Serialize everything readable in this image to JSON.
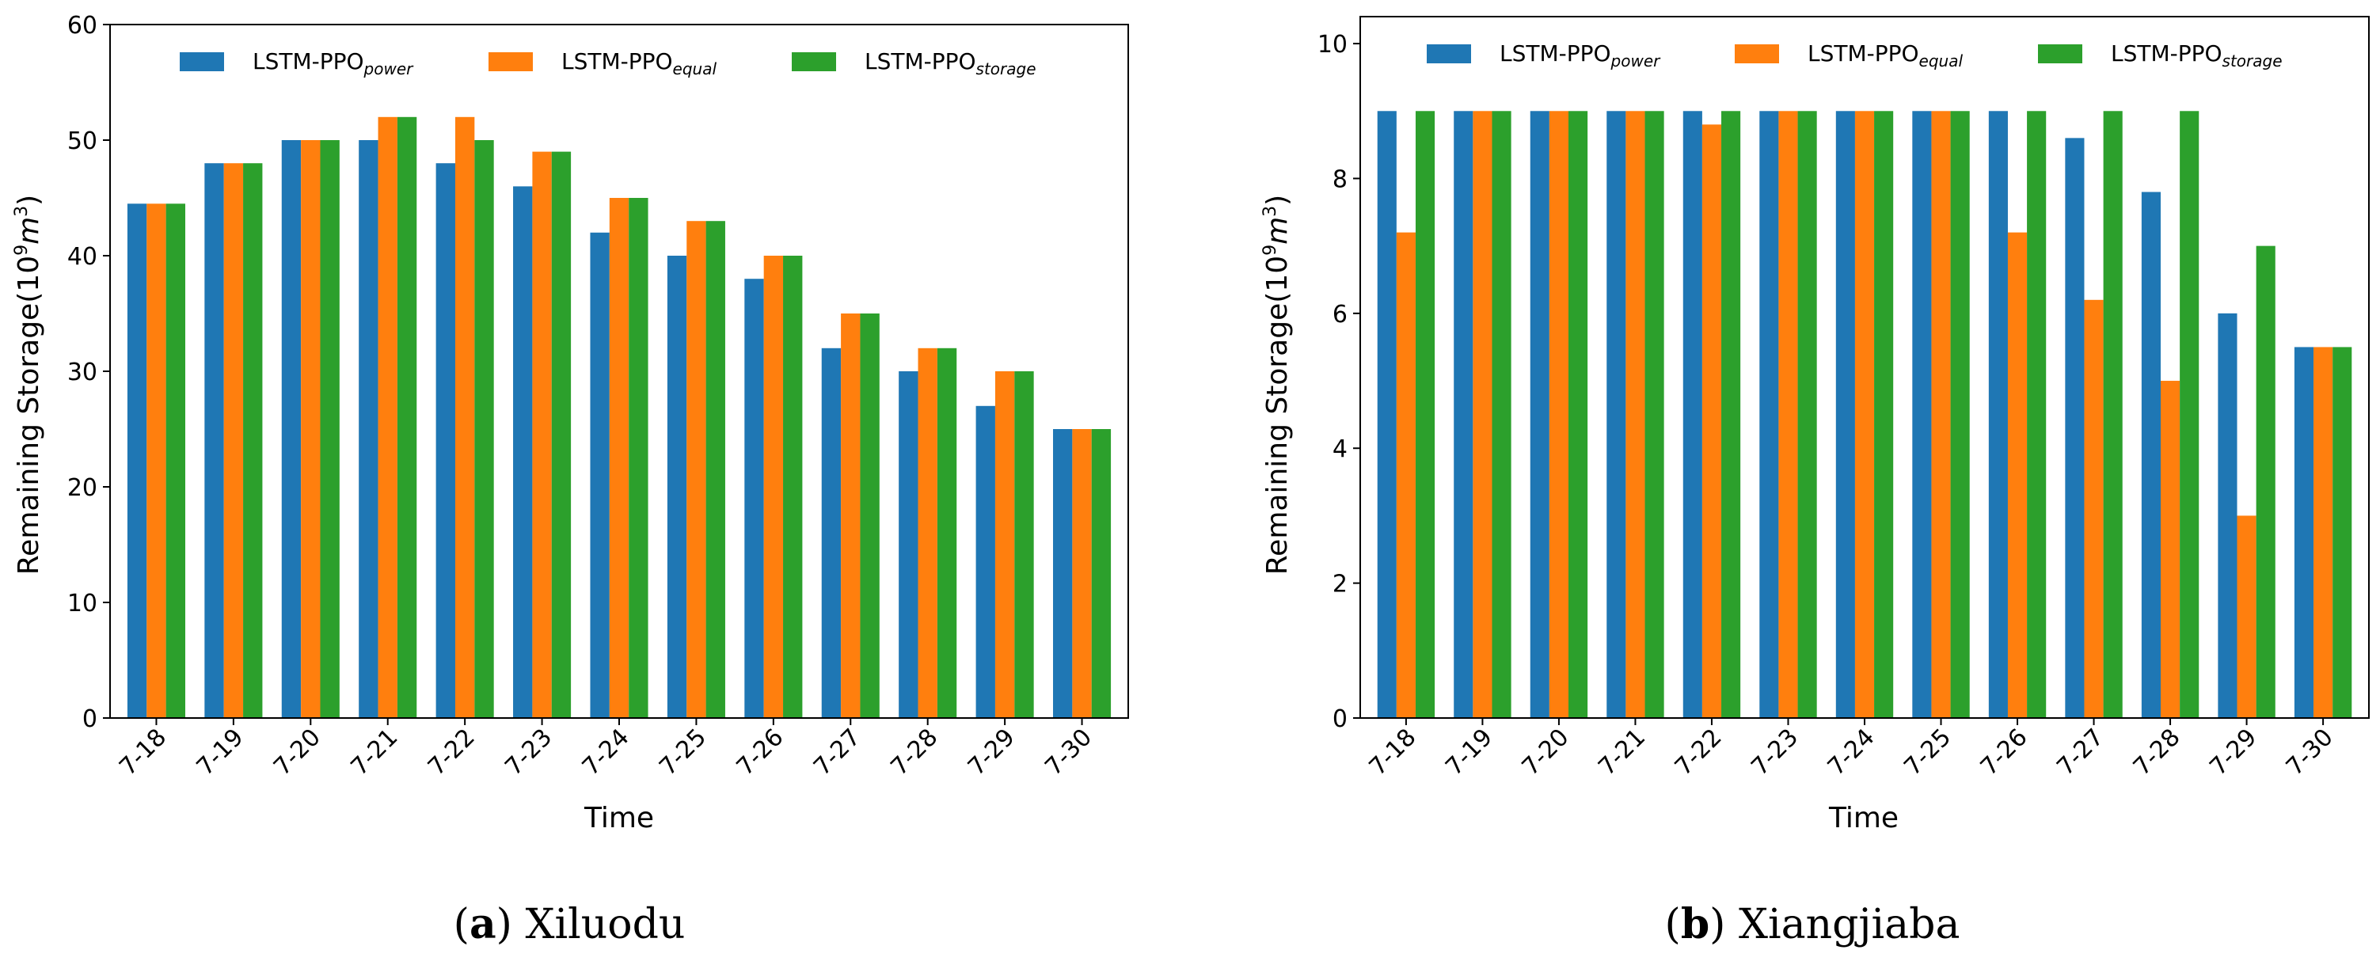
{
  "chart_data": [
    {
      "type": "bar",
      "panel_label": "a",
      "caption": "Xiluodu",
      "xlabel": "Time",
      "ylabel_prefix": "Remaining Storage(10",
      "ylabel_sup": "9",
      "ylabel_unit": "m",
      "ylabel_unit_sup": "3",
      "ylabel_suffix": ")",
      "ylim": [
        0,
        60
      ],
      "yticks": [
        0,
        10,
        20,
        30,
        40,
        50,
        60
      ],
      "legend_position": "top",
      "categories": [
        "7-18",
        "7-19",
        "7-20",
        "7-21",
        "7-22",
        "7-23",
        "7-24",
        "7-25",
        "7-26",
        "7-27",
        "7-28",
        "7-29",
        "7-30"
      ],
      "series": [
        {
          "name": "LSTM-PPO",
          "subscript": "power",
          "color": "#1f77b4",
          "values": [
            44.5,
            48,
            50,
            50,
            48,
            46,
            42,
            40,
            38,
            32,
            30,
            27,
            25
          ]
        },
        {
          "name": "LSTM-PPO",
          "subscript": "equal",
          "color": "#ff7f0e",
          "values": [
            44.5,
            48,
            50,
            52,
            52,
            49,
            45,
            43,
            40,
            35,
            32,
            30,
            25
          ]
        },
        {
          "name": "LSTM-PPO",
          "subscript": "storage",
          "color": "#2ca02c",
          "values": [
            44.5,
            48,
            50,
            52,
            50,
            49,
            45,
            43,
            40,
            35,
            32,
            30,
            25
          ]
        }
      ]
    },
    {
      "type": "bar",
      "panel_label": "b",
      "caption": "Xiangjiaba",
      "xlabel": "Time",
      "ylabel_prefix": "Remaining Storage(10",
      "ylabel_sup": "9",
      "ylabel_unit": "m",
      "ylabel_unit_sup": "3",
      "ylabel_suffix": ")",
      "ylim": [
        0,
        10.4
      ],
      "yticks": [
        0,
        2,
        4,
        6,
        8,
        10
      ],
      "legend_position": "top",
      "categories": [
        "7-18",
        "7-19",
        "7-20",
        "7-21",
        "7-22",
        "7-23",
        "7-24",
        "7-25",
        "7-26",
        "7-27",
        "7-28",
        "7-29",
        "7-30"
      ],
      "series": [
        {
          "name": "LSTM-PPO",
          "subscript": "power",
          "color": "#1f77b4",
          "values": [
            9,
            9,
            9,
            9,
            9,
            9,
            9,
            9,
            9,
            8.6,
            7.8,
            6,
            5.5
          ]
        },
        {
          "name": "LSTM-PPO",
          "subscript": "equal",
          "color": "#ff7f0e",
          "values": [
            7.2,
            9,
            9,
            9,
            8.8,
            9,
            9,
            9,
            7.2,
            6.2,
            5,
            3,
            5.5
          ]
        },
        {
          "name": "LSTM-PPO",
          "subscript": "storage",
          "color": "#2ca02c",
          "values": [
            9,
            9,
            9,
            9,
            9,
            9,
            9,
            9,
            9,
            9,
            9,
            7,
            5.5
          ]
        }
      ]
    }
  ]
}
